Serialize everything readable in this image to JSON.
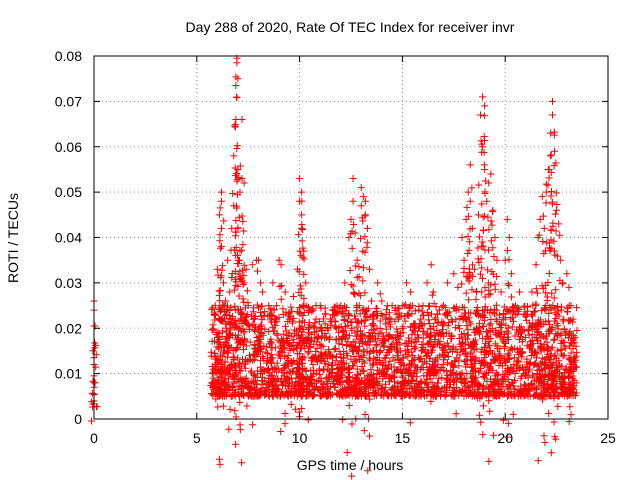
{
  "chart_data": {
    "type": "scatter",
    "title": "Day 288 of 2020, Rate Of TEC Index for receiver invr",
    "xlabel": "GPS time / hours",
    "ylabel": "ROTI / TECUs",
    "xlim": [
      0,
      25
    ],
    "ylim": [
      0,
      0.08
    ],
    "x_ticks": [
      0,
      5,
      10,
      15,
      20,
      25
    ],
    "y_ticks": [
      0,
      0.01,
      0.02,
      0.03,
      0.04,
      0.05,
      0.06,
      0.07,
      0.08
    ],
    "x_tick_labels": [
      "0",
      "5",
      "10",
      "15",
      "20",
      "25"
    ],
    "y_tick_labels": [
      "0",
      "0.01",
      "0.02",
      "0.03",
      "0.04",
      "0.05",
      "0.06",
      "0.07",
      "0.08"
    ],
    "grid": true,
    "marker": "+",
    "marker_color": "#ff0000",
    "series": [
      {
        "name": "ROTI",
        "points": [
          [
            0.0,
            0.026
          ],
          [
            0.0,
            0.024
          ],
          [
            0.0,
            0.0205
          ],
          [
            0.0,
            0.0205
          ],
          [
            0.0,
            0.0135
          ],
          [
            0.0,
            0.012
          ],
          [
            0.0,
            0.0095
          ],
          [
            0.0,
            0.008
          ],
          [
            0.0,
            0.007
          ],
          [
            0.0,
            0.0055
          ],
          [
            0.0,
            0.004
          ],
          [
            0.05,
            0.0205
          ],
          [
            0.05,
            0.008
          ],
          [
            5.8,
            0.011
          ],
          [
            5.8,
            0.009
          ],
          [
            5.8,
            0.007
          ],
          [
            5.9,
            0.025
          ],
          [
            5.9,
            0.012
          ],
          [
            6.0,
            0.018
          ],
          [
            6.0,
            0.008
          ],
          [
            6.0,
            0.033
          ],
          [
            6.1,
            0.022
          ],
          [
            6.1,
            0.045
          ],
          [
            6.2,
            0.048
          ],
          [
            6.2,
            0.042
          ],
          [
            6.2,
            0.038
          ],
          [
            6.2,
            0.05
          ],
          [
            6.3,
            0.03
          ],
          [
            6.3,
            0.015
          ],
          [
            6.4,
            0.026
          ],
          [
            6.5,
            0.035
          ],
          [
            6.6,
            0.028
          ],
          [
            6.7,
            0.042
          ],
          [
            6.8,
            0.058
          ],
          [
            6.8,
            0.047
          ],
          [
            6.9,
            0.066
          ],
          [
            6.9,
            0.0735
          ],
          [
            6.95,
            0.0785
          ],
          [
            6.95,
            0.0795
          ],
          [
            7.0,
            0.075
          ],
          [
            7.0,
            0.055
          ],
          [
            7.0,
            0.042
          ],
          [
            7.1,
            0.05
          ],
          [
            7.1,
            0.037
          ],
          [
            7.2,
            0.053
          ],
          [
            7.2,
            0.066
          ],
          [
            7.3,
            0.052
          ],
          [
            7.3,
            0.03
          ],
          [
            7.4,
            0.033
          ],
          [
            7.5,
            0.025
          ],
          [
            7.7,
            0.034
          ],
          [
            7.9,
            0.035
          ],
          [
            8.0,
            0.035
          ],
          [
            8.1,
            0.03
          ],
          [
            8.2,
            0.028
          ],
          [
            8.5,
            0.025
          ],
          [
            8.7,
            0.03
          ],
          [
            8.8,
            0.022
          ],
          [
            9.0,
            0.035
          ],
          [
            9.1,
            0.034
          ],
          [
            9.3,
            0.028
          ],
          [
            9.5,
            0.022
          ],
          [
            9.7,
            0.027
          ],
          [
            9.9,
            0.033
          ],
          [
            10.0,
            0.053
          ],
          [
            10.0,
            0.048
          ],
          [
            10.1,
            0.05
          ],
          [
            10.1,
            0.045
          ],
          [
            10.1,
            0.042
          ],
          [
            10.2,
            0.037
          ],
          [
            10.3,
            0.03
          ],
          [
            10.5,
            0.024
          ],
          [
            10.8,
            0.022
          ],
          [
            11.0,
            0.02
          ],
          [
            11.3,
            0.018
          ],
          [
            11.5,
            0.022
          ],
          [
            11.8,
            0.02
          ],
          [
            12.0,
            0.025
          ],
          [
            12.2,
            0.03
          ],
          [
            12.4,
            0.04
          ],
          [
            12.5,
            0.044
          ],
          [
            12.6,
            0.048
          ],
          [
            12.6,
            0.053
          ],
          [
            12.7,
            0.041
          ],
          [
            12.8,
            0.035
          ],
          [
            12.9,
            0.025
          ],
          [
            13.0,
            0.047
          ],
          [
            13.0,
            0.051
          ],
          [
            13.1,
            0.049
          ],
          [
            13.2,
            0.045
          ],
          [
            13.2,
            0.048
          ],
          [
            13.3,
            0.042
          ],
          [
            13.4,
            0.033
          ],
          [
            13.5,
            0.026
          ],
          [
            13.6,
            0.022
          ],
          [
            13.8,
            0.03
          ],
          [
            14.0,
            0.026
          ],
          [
            14.2,
            0.023
          ],
          [
            14.5,
            0.025
          ],
          [
            14.8,
            0.022
          ],
          [
            15.0,
            0.025
          ],
          [
            15.2,
            0.03
          ],
          [
            15.4,
            0.028
          ],
          [
            15.5,
            0.025
          ],
          [
            15.8,
            0.024
          ],
          [
            16.0,
            0.025
          ],
          [
            16.2,
            0.03
          ],
          [
            16.4,
            0.034
          ],
          [
            16.5,
            0.028
          ],
          [
            16.8,
            0.024
          ],
          [
            17.0,
            0.025
          ],
          [
            17.2,
            0.03
          ],
          [
            17.5,
            0.032
          ],
          [
            17.7,
            0.029
          ],
          [
            17.9,
            0.04
          ],
          [
            18.0,
            0.035
          ],
          [
            18.1,
            0.044
          ],
          [
            18.2,
            0.05
          ],
          [
            18.3,
            0.056
          ],
          [
            18.3,
            0.048
          ],
          [
            18.4,
            0.042
          ],
          [
            18.5,
            0.033
          ],
          [
            18.6,
            0.028
          ],
          [
            18.7,
            0.045
          ],
          [
            18.8,
            0.067
          ],
          [
            18.9,
            0.071
          ],
          [
            18.9,
            0.06
          ],
          [
            19.0,
            0.069
          ],
          [
            19.0,
            0.055
          ],
          [
            19.1,
            0.048
          ],
          [
            19.2,
            0.052
          ],
          [
            19.3,
            0.054
          ],
          [
            19.4,
            0.046
          ],
          [
            19.5,
            0.04
          ],
          [
            19.6,
            0.035
          ],
          [
            19.8,
            0.028
          ],
          [
            20.0,
            0.035
          ],
          [
            20.1,
            0.044
          ],
          [
            20.2,
            0.04
          ],
          [
            20.3,
            0.032
          ],
          [
            20.5,
            0.025
          ],
          [
            20.7,
            0.028
          ],
          [
            21.0,
            0.023
          ],
          [
            21.3,
            0.028
          ],
          [
            21.5,
            0.034
          ],
          [
            21.6,
            0.04
          ],
          [
            21.7,
            0.044
          ],
          [
            21.8,
            0.049
          ],
          [
            21.9,
            0.042
          ],
          [
            22.0,
            0.05
          ],
          [
            22.1,
            0.055
          ],
          [
            22.2,
            0.058
          ],
          [
            22.2,
            0.063
          ],
          [
            22.3,
            0.07
          ],
          [
            22.3,
            0.067
          ],
          [
            22.4,
            0.059
          ],
          [
            22.5,
            0.046
          ],
          [
            22.6,
            0.043
          ],
          [
            22.7,
            0.035
          ],
          [
            22.8,
            0.03
          ],
          [
            23.0,
            0.032
          ],
          [
            23.1,
            0.029
          ],
          [
            23.2,
            0.025
          ],
          [
            23.3,
            0.022
          ],
          [
            23.4,
            0.018
          ]
        ],
        "dense_band": {
          "x_range": [
            5.7,
            23.5
          ],
          "y_range": [
            0.002,
            0.022
          ],
          "description": "dense cluster of ROTI values"
        }
      }
    ]
  }
}
